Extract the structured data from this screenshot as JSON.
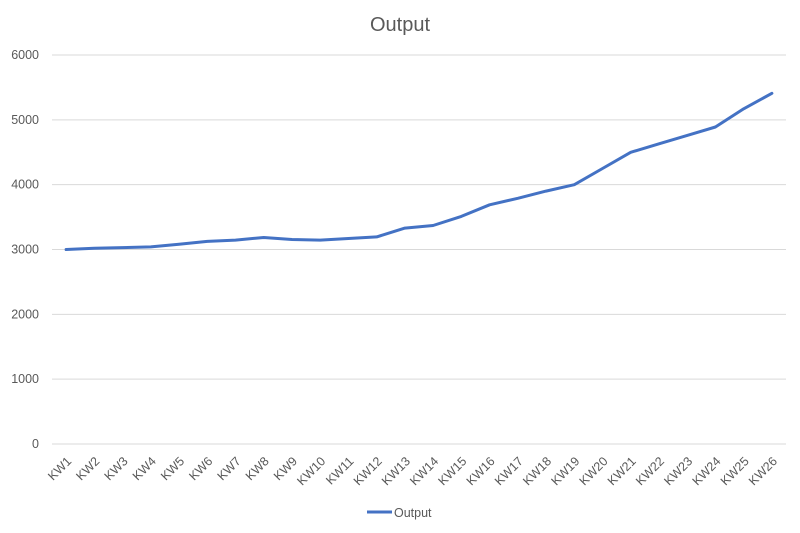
{
  "chart_data": {
    "type": "line",
    "title": "Output",
    "xlabel": "",
    "ylabel": "",
    "categories": [
      "KW1",
      "KW2",
      "KW3",
      "KW4",
      "KW5",
      "KW6",
      "KW7",
      "KW8",
      "KW9",
      "KW10",
      "KW11",
      "KW12",
      "KW13",
      "KW14",
      "KW15",
      "KW16",
      "KW17",
      "KW18",
      "KW19",
      "KW20",
      "KW21",
      "KW22",
      "KW23",
      "KW24",
      "KW25",
      "KW26"
    ],
    "series": [
      {
        "name": "Output",
        "color": "#4472c4",
        "values": [
          3000,
          3020,
          3030,
          3040,
          3080,
          3125,
          3145,
          3185,
          3155,
          3145,
          3170,
          3195,
          3330,
          3370,
          3510,
          3690,
          3790,
          3900,
          4000,
          4250,
          4500,
          4630,
          4760,
          4890,
          5170,
          5410
        ]
      }
    ],
    "ylim": [
      0,
      6000
    ],
    "yticks": [
      0,
      1000,
      2000,
      3000,
      4000,
      5000,
      6000
    ],
    "grid": true,
    "legend": "bottom"
  }
}
